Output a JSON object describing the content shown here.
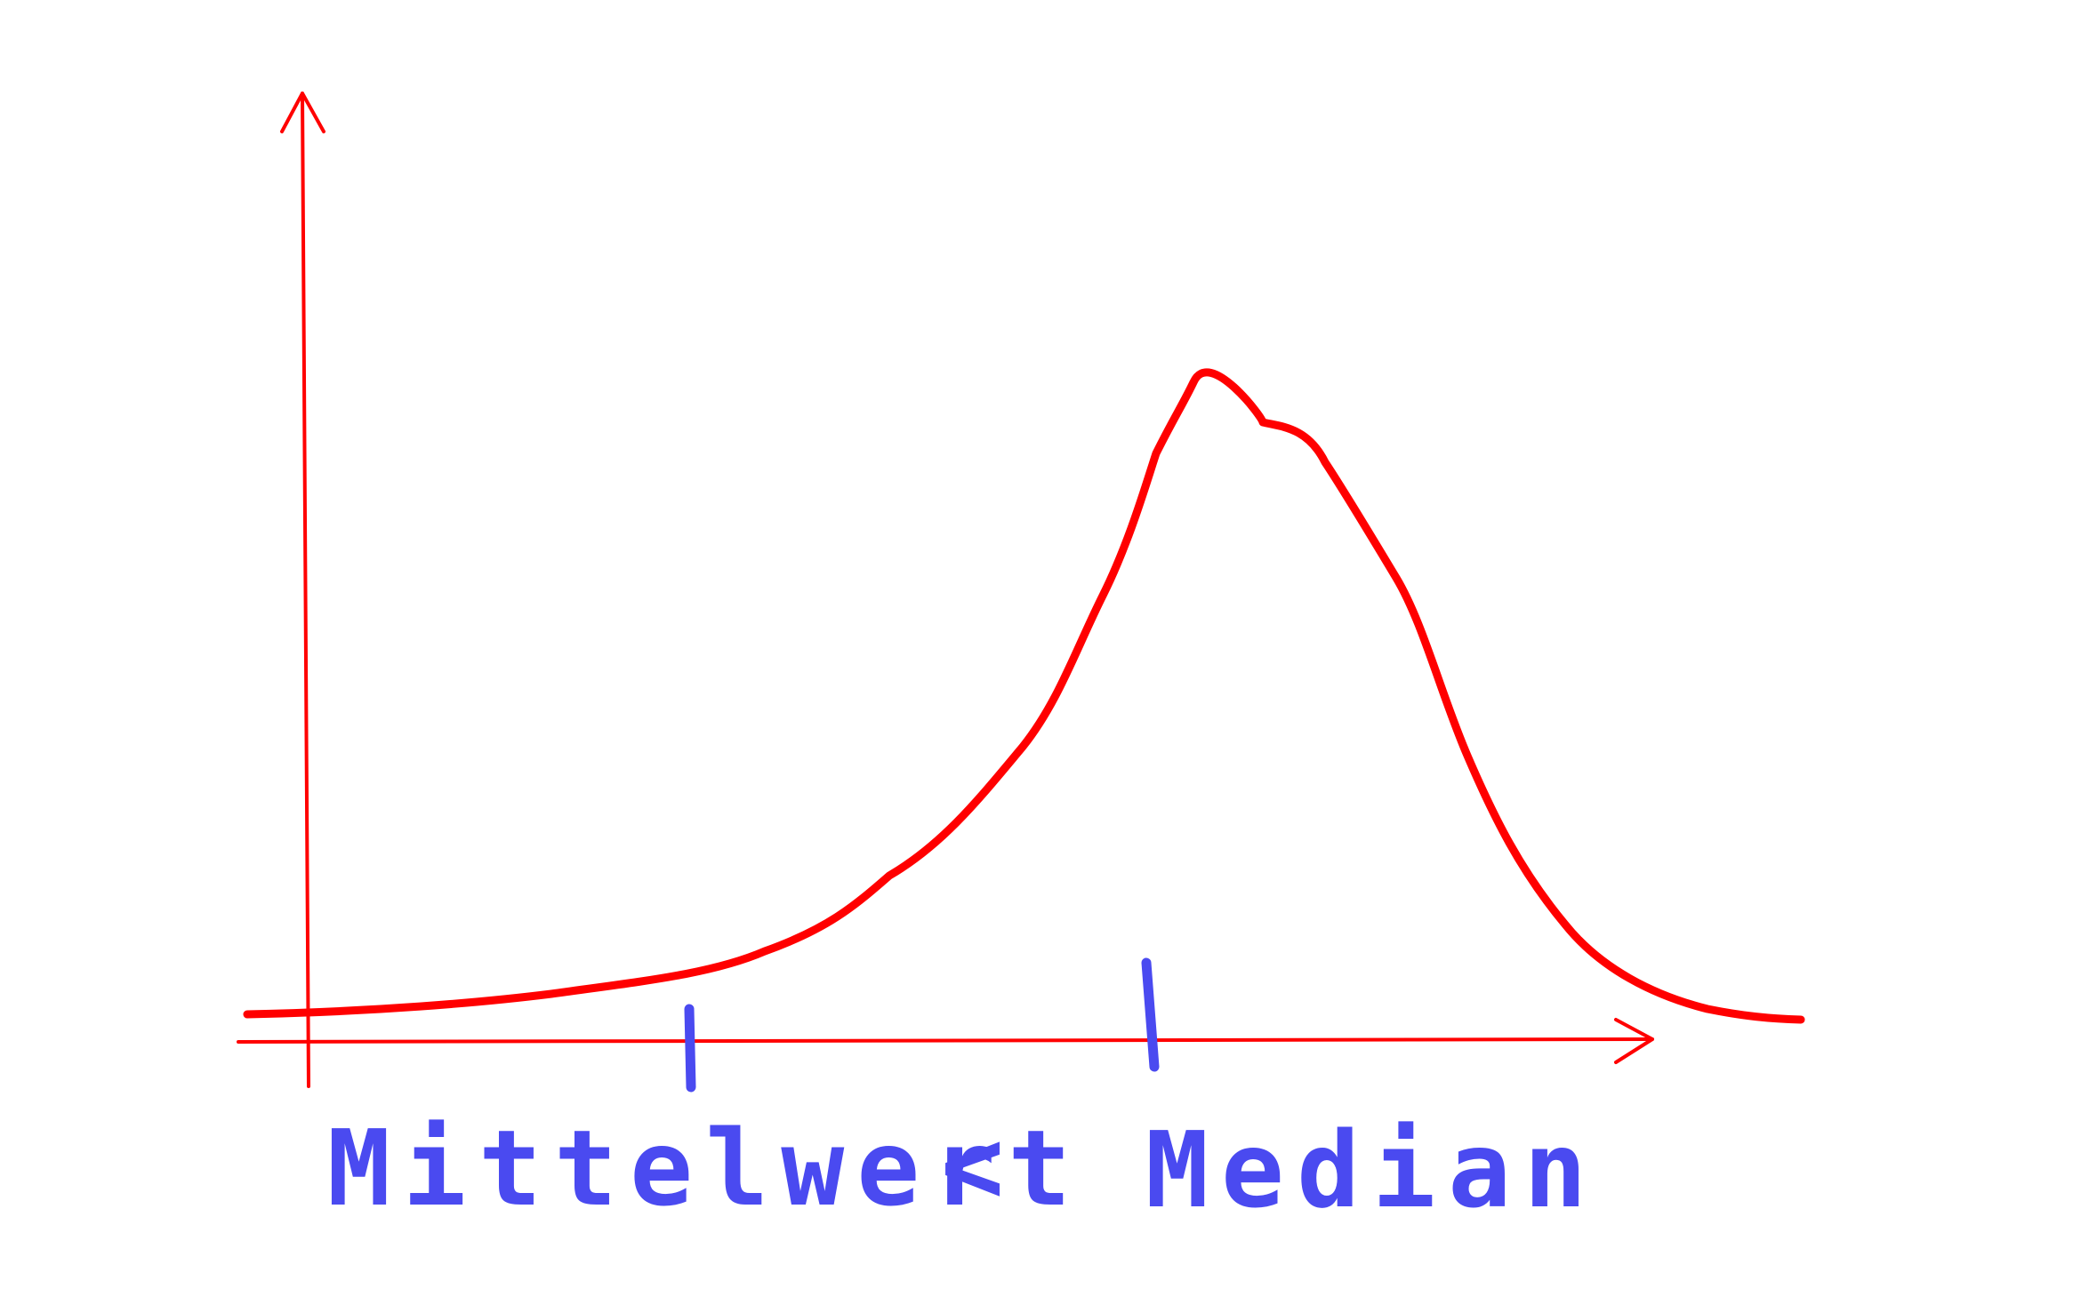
{
  "labels": {
    "mean": "Mittelwert",
    "less_than": "<",
    "median": "Median"
  },
  "colors": {
    "axes_and_curve": "#ff0000",
    "annotations": "#4a4af0",
    "background": "#ffffff"
  },
  "shape": "left-skewed distribution curve; mean marker lies left of the median marker near the peak"
}
